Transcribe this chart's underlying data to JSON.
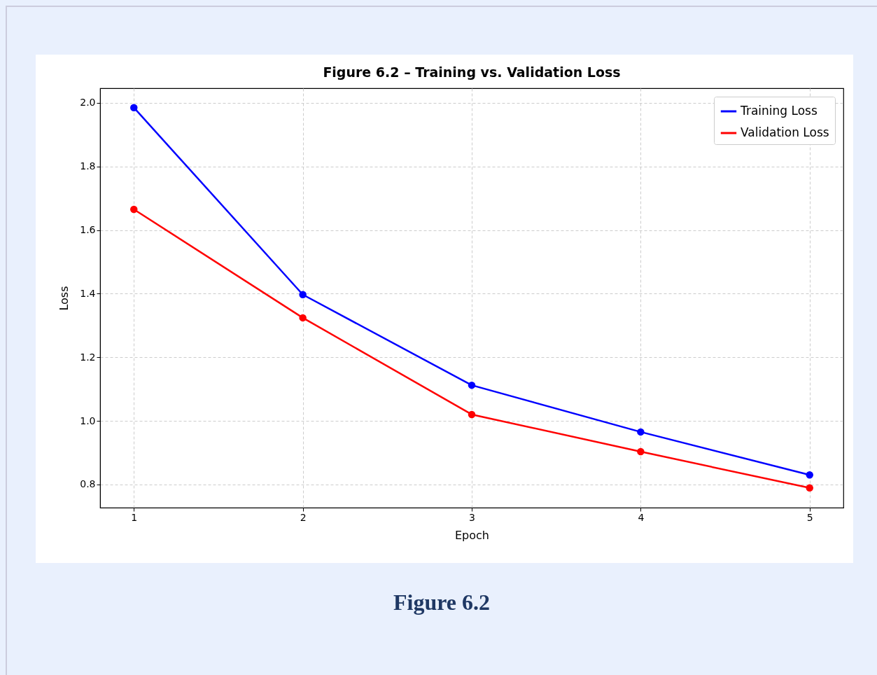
{
  "chart_data": {
    "type": "line",
    "title": "Figure 6.2 – Training vs. Validation Loss",
    "xlabel": "Epoch",
    "ylabel": "Loss",
    "x": [
      1,
      2,
      3,
      4,
      5
    ],
    "series": [
      {
        "name": "Training Loss",
        "color": "#0000ff",
        "values": [
          1.985,
          1.397,
          1.112,
          0.965,
          0.83
        ]
      },
      {
        "name": "Validation Loss",
        "color": "#ff0000",
        "values": [
          1.665,
          1.324,
          1.02,
          0.903,
          0.789
        ]
      }
    ],
    "xlim": [
      0.8,
      5.2
    ],
    "ylim": [
      0.727,
      2.046
    ],
    "xticks": [
      1,
      2,
      3,
      4,
      5
    ],
    "yticks": [
      {
        "value": 0.8,
        "label": "0.8"
      },
      {
        "value": 1.0,
        "label": "1.0"
      },
      {
        "value": 1.2,
        "label": "1.2"
      },
      {
        "value": 1.4,
        "label": "1.4"
      },
      {
        "value": 1.6,
        "label": "1.6"
      },
      {
        "value": 1.8,
        "label": "1.8"
      },
      {
        "value": 2.0,
        "label": "2.0"
      }
    ],
    "grid": true,
    "legend": "top right",
    "marker": "circle",
    "line_style": "solid",
    "annotations": [
      "Figure 6.2"
    ]
  }
}
